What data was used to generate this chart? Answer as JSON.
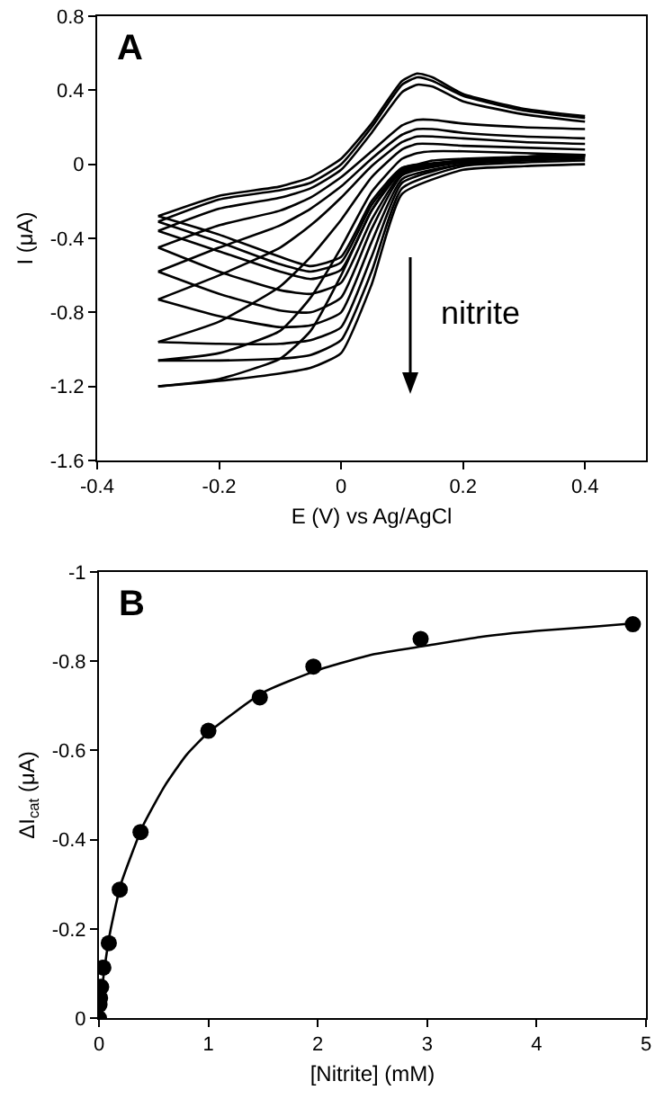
{
  "chart_data": [
    {
      "type": "line",
      "title": "A",
      "xlabel": "E (V) vs Ag/AgCl",
      "ylabel": "I (μA)",
      "xlim": [
        -0.4,
        0.5
      ],
      "xticks": [
        -0.4,
        -0.2,
        0,
        0.2,
        0.4
      ],
      "ylim": [
        -1.6,
        0.8
      ],
      "yticks": [
        -1.6,
        -1.2,
        -0.8,
        -0.4,
        0,
        0.4,
        0.8
      ],
      "grid": false,
      "marker": "none",
      "line_style": "solid",
      "annotations": [
        "nitrite"
      ],
      "series": [
        {
          "color": "#000000",
          "x": [
            -0.3,
            -0.2,
            -0.1,
            -0.05,
            0,
            0.05,
            0.1,
            0.125,
            0.15,
            0.2,
            0.3,
            0.4
          ],
          "values": [
            -0.28,
            -0.17,
            -0.12,
            -0.07,
            0.03,
            0.22,
            0.45,
            0.49,
            0.47,
            0.38,
            0.3,
            0.26
          ]
        },
        {
          "color": "#000000",
          "x": [
            -0.3,
            -0.2,
            -0.1,
            -0.05,
            0,
            0.05,
            0.1,
            0.2,
            0.3,
            0.4
          ],
          "values": [
            -0.28,
            -0.38,
            -0.5,
            -0.55,
            -0.5,
            -0.2,
            -0.02,
            0.02,
            0.04,
            0.05
          ]
        },
        {
          "color": "#000000",
          "x": [
            -0.3,
            -0.2,
            -0.1,
            -0.05,
            0,
            0.05,
            0.1,
            0.125,
            0.15,
            0.2,
            0.3,
            0.4
          ],
          "values": [
            -0.31,
            -0.19,
            -0.14,
            -0.1,
            0,
            0.2,
            0.43,
            0.47,
            0.45,
            0.37,
            0.29,
            0.25
          ]
        },
        {
          "color": "#000000",
          "x": [
            -0.3,
            -0.2,
            -0.1,
            -0.05,
            0,
            0.05,
            0.1,
            0.2,
            0.3,
            0.4
          ],
          "values": [
            -0.31,
            -0.42,
            -0.54,
            -0.58,
            -0.53,
            -0.22,
            -0.03,
            0.02,
            0.04,
            0.05
          ]
        },
        {
          "color": "#000000",
          "x": [
            -0.3,
            -0.2,
            -0.1,
            -0.05,
            0,
            0.05,
            0.1,
            0.125,
            0.15,
            0.2,
            0.3,
            0.4
          ],
          "values": [
            -0.36,
            -0.24,
            -0.18,
            -0.13,
            -0.03,
            0.17,
            0.39,
            0.43,
            0.42,
            0.34,
            0.27,
            0.23
          ]
        },
        {
          "color": "#000000",
          "x": [
            -0.3,
            -0.2,
            -0.1,
            -0.05,
            0,
            0.05,
            0.1,
            0.2,
            0.3,
            0.4
          ],
          "values": [
            -0.36,
            -0.47,
            -0.58,
            -0.62,
            -0.57,
            -0.25,
            -0.04,
            0.02,
            0.04,
            0.05
          ]
        },
        {
          "color": "#000000",
          "x": [
            -0.3,
            -0.2,
            -0.1,
            -0.05,
            0,
            0.05,
            0.1,
            0.125,
            0.15,
            0.2,
            0.3,
            0.4
          ],
          "values": [
            -0.45,
            -0.33,
            -0.25,
            -0.18,
            -0.07,
            0.07,
            0.21,
            0.24,
            0.24,
            0.22,
            0.2,
            0.19
          ]
        },
        {
          "color": "#000000",
          "x": [
            -0.3,
            -0.2,
            -0.1,
            -0.05,
            0,
            0.05,
            0.1,
            0.2,
            0.3,
            0.4
          ],
          "values": [
            -0.45,
            -0.58,
            -0.68,
            -0.7,
            -0.64,
            -0.3,
            -0.05,
            0.02,
            0.04,
            0.05
          ]
        },
        {
          "color": "#000000",
          "x": [
            -0.3,
            -0.2,
            -0.1,
            -0.05,
            0,
            0.05,
            0.1,
            0.125,
            0.15,
            0.2,
            0.3,
            0.4
          ],
          "values": [
            -0.58,
            -0.45,
            -0.33,
            -0.24,
            -0.12,
            0.03,
            0.16,
            0.19,
            0.19,
            0.17,
            0.15,
            0.14
          ]
        },
        {
          "color": "#000000",
          "x": [
            -0.3,
            -0.2,
            -0.1,
            -0.05,
            0,
            0.05,
            0.1,
            0.2,
            0.3,
            0.4
          ],
          "values": [
            -0.58,
            -0.7,
            -0.79,
            -0.8,
            -0.72,
            -0.35,
            -0.06,
            0.01,
            0.03,
            0.04
          ]
        },
        {
          "color": "#000000",
          "x": [
            -0.3,
            -0.2,
            -0.1,
            -0.05,
            0,
            0.05,
            0.1,
            0.125,
            0.15,
            0.2,
            0.3,
            0.4
          ],
          "values": [
            -0.73,
            -0.6,
            -0.45,
            -0.33,
            -0.18,
            -0.01,
            0.12,
            0.15,
            0.15,
            0.14,
            0.12,
            0.11
          ]
        },
        {
          "color": "#000000",
          "x": [
            -0.3,
            -0.2,
            -0.1,
            -0.05,
            0,
            0.05,
            0.1,
            0.2,
            0.3,
            0.4
          ],
          "values": [
            -0.73,
            -0.82,
            -0.88,
            -0.87,
            -0.8,
            -0.42,
            -0.08,
            0,
            0.03,
            0.04
          ]
        },
        {
          "color": "#000000",
          "x": [
            -0.3,
            -0.2,
            -0.1,
            -0.05,
            0,
            0.05,
            0.1,
            0.125,
            0.15,
            0.2,
            0.3,
            0.4
          ],
          "values": [
            -0.96,
            -0.85,
            -0.66,
            -0.5,
            -0.3,
            -0.07,
            0.08,
            0.11,
            0.11,
            0.1,
            0.09,
            0.08
          ]
        },
        {
          "color": "#000000",
          "x": [
            -0.3,
            -0.2,
            -0.1,
            -0.05,
            0,
            0.05,
            0.1,
            0.2,
            0.3,
            0.4
          ],
          "values": [
            -0.96,
            -0.97,
            -0.97,
            -0.95,
            -0.88,
            -0.5,
            -0.1,
            0,
            0.02,
            0.03
          ]
        },
        {
          "color": "#000000",
          "x": [
            -0.3,
            -0.2,
            -0.1,
            -0.05,
            0,
            0.05,
            0.1,
            0.125,
            0.15,
            0.2,
            0.3,
            0.4
          ],
          "values": [
            -1.06,
            -1.02,
            -0.9,
            -0.72,
            -0.45,
            -0.15,
            0.03,
            0.06,
            0.07,
            0.07,
            0.06,
            0.05
          ]
        },
        {
          "color": "#000000",
          "x": [
            -0.3,
            -0.2,
            -0.1,
            -0.05,
            0,
            0.05,
            0.1,
            0.2,
            0.3,
            0.4
          ],
          "values": [
            -1.06,
            -1.06,
            -1.05,
            -1.03,
            -0.95,
            -0.58,
            -0.13,
            -0.01,
            0.01,
            0.02
          ]
        },
        {
          "color": "#000000",
          "x": [
            -0.3,
            -0.2,
            -0.1,
            -0.05,
            0,
            0.05,
            0.1,
            0.125,
            0.15,
            0.2,
            0.3,
            0.4
          ],
          "values": [
            -1.2,
            -1.16,
            -1.05,
            -0.9,
            -0.6,
            -0.25,
            -0.02,
            0,
            0.02,
            0.03,
            0.04,
            0.05
          ]
        },
        {
          "color": "#000000",
          "x": [
            -0.3,
            -0.2,
            -0.1,
            -0.05,
            0,
            0.05,
            0.1,
            0.2,
            0.3,
            0.4
          ],
          "values": [
            -1.2,
            -1.17,
            -1.13,
            -1.1,
            -1.02,
            -0.65,
            -0.16,
            -0.03,
            -0.01,
            0
          ]
        }
      ]
    },
    {
      "type": "scatter",
      "title": "B",
      "xlabel": "[Nitrite] (mM)",
      "ylabel": "ΔI$_{cat}$ (μA)",
      "xlim": [
        0,
        5
      ],
      "xticks": [
        0,
        1,
        2,
        3,
        4,
        5
      ],
      "ylim": [
        0,
        -1
      ],
      "yticks": [
        0,
        -0.2,
        -0.4,
        -0.6,
        -0.8,
        -1
      ],
      "grid": false,
      "series": [
        {
          "type": "line",
          "color": "#000000",
          "marker": "none",
          "x": [
            0,
            0.02,
            0.05,
            0.1,
            0.2,
            0.4,
            0.6,
            0.8,
            1,
            1.5,
            2,
            2.5,
            3,
            3.5,
            4,
            4.5,
            4.9
          ],
          "values": [
            0,
            -0.05,
            -0.11,
            -0.19,
            -0.3,
            -0.43,
            -0.52,
            -0.59,
            -0.64,
            -0.73,
            -0.78,
            -0.815,
            -0.835,
            -0.855,
            -0.868,
            -0.877,
            -0.885
          ]
        },
        {
          "type": "scatter",
          "color": "#000000",
          "marker": "circle",
          "x": [
            0,
            0.005,
            0.01,
            0.02,
            0.04,
            0.09,
            0.19,
            0.38,
            1,
            1.47,
            1.96,
            2.94,
            4.88
          ],
          "values": [
            0,
            -0.03,
            -0.045,
            -0.07,
            -0.113,
            -0.168,
            -0.288,
            -0.417,
            -0.644,
            -0.719,
            -0.788,
            -0.85,
            -0.883
          ]
        }
      ]
    }
  ]
}
